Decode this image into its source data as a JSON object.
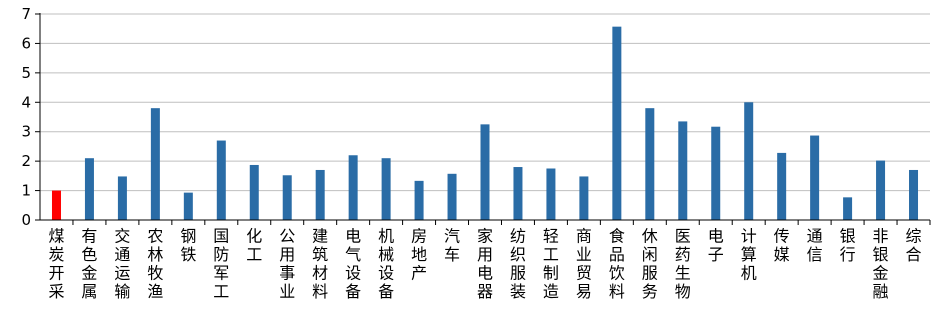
{
  "chart_data": {
    "type": "bar",
    "title": "",
    "xlabel": "",
    "ylabel": "",
    "ylim": [
      0,
      7
    ],
    "yticks": [
      0,
      1,
      2,
      3,
      4,
      5,
      6,
      7
    ],
    "grid": "horizontal",
    "legend": "none",
    "colors": {
      "default": "#2a6ca6",
      "highlight": "#ff0000",
      "grid": "#bfbfbf",
      "axis": "#000000"
    },
    "highlight_index": 0,
    "categories": [
      "煤炭开采",
      "有色金属",
      "交通运输",
      "农林牧渔",
      "钢铁",
      "国防军工",
      "化工",
      "公用事业",
      "建筑材料",
      "电气设备",
      "机械设备",
      "房地产",
      "汽车",
      "家用电器",
      "纺织服装",
      "轻工制造",
      "商业贸易",
      "食品饮料",
      "休闲服务",
      "医药生物",
      "电子",
      "计算机",
      "传媒",
      "通信",
      "银行",
      "非银金融",
      "综合"
    ],
    "values": [
      1.0,
      2.1,
      1.48,
      3.8,
      0.93,
      2.7,
      1.87,
      1.52,
      1.7,
      2.2,
      2.1,
      1.33,
      1.57,
      3.25,
      1.8,
      1.75,
      1.48,
      6.57,
      3.8,
      3.35,
      3.17,
      4.0,
      2.28,
      2.87,
      0.77,
      2.02,
      1.7
    ]
  }
}
